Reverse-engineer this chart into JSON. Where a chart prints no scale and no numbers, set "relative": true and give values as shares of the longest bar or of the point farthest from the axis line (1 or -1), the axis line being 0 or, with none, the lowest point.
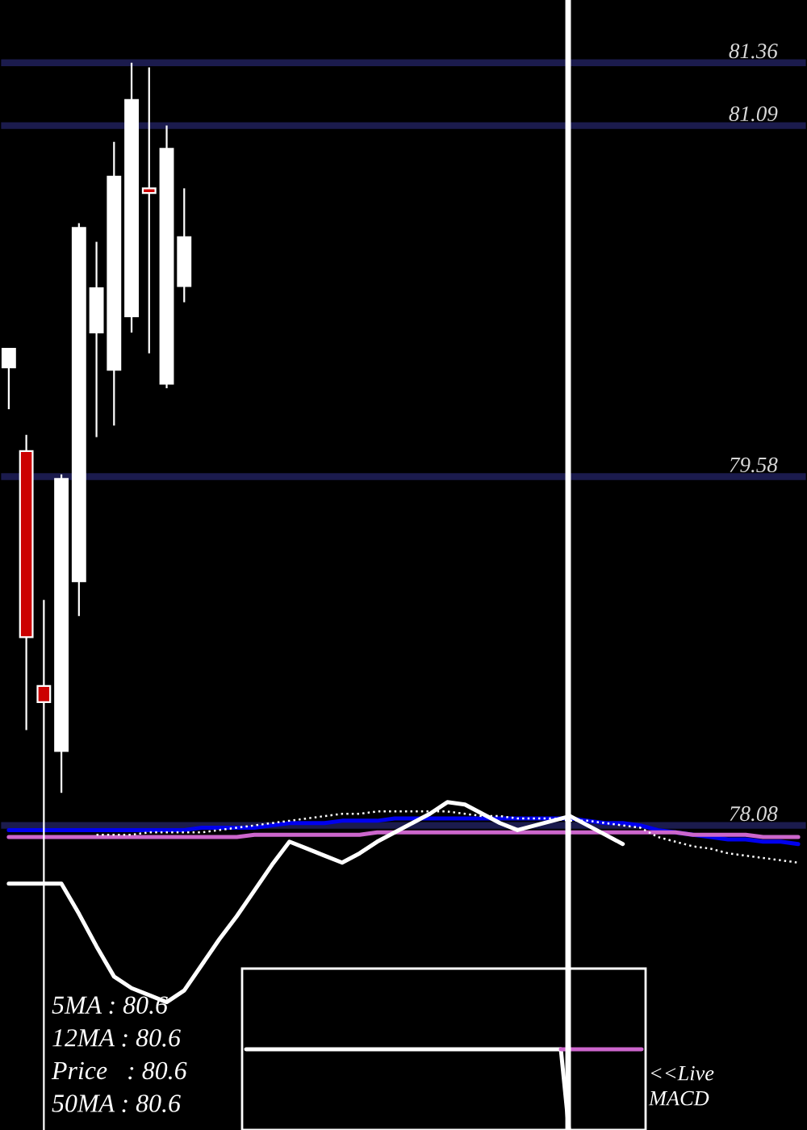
{
  "chart_data": [
    {
      "type": "candlestick",
      "categories": [
        null,
        null,
        null,
        null,
        null,
        null,
        null,
        null,
        null,
        null,
        null,
        null,
        null,
        null,
        null,
        null,
        null,
        null,
        null,
        null,
        null,
        null,
        null,
        null,
        null,
        null,
        null,
        null,
        null,
        null,
        null,
        null,
        null,
        null,
        null,
        null,
        null,
        null,
        null,
        null,
        null,
        null,
        null,
        null,
        null,
        null
      ],
      "ohlc": [
        [
          80.05,
          80.13,
          79.87,
          80.13
        ],
        [
          79.69,
          79.76,
          78.49,
          78.89
        ],
        [
          78.68,
          79.05,
          76.77,
          78.61
        ],
        [
          78.4,
          79.59,
          78.22,
          79.57
        ],
        [
          79.13,
          80.67,
          78.98,
          80.65
        ],
        [
          80.2,
          80.59,
          79.75,
          80.39
        ],
        [
          80.04,
          81.02,
          79.8,
          80.87
        ],
        [
          80.27,
          81.36,
          80.2,
          81.2
        ],
        [
          80.82,
          81.34,
          80.11,
          80.8
        ],
        [
          79.98,
          81.09,
          79.96,
          80.99
        ],
        [
          80.4,
          80.82,
          80.33,
          80.61
        ],
        null,
        null,
        null,
        null,
        null,
        null,
        null,
        null,
        null,
        null,
        null,
        null,
        null,
        null,
        null,
        null,
        null,
        null,
        null,
        null,
        null,
        null,
        null,
        null,
        null,
        null,
        null,
        null,
        null,
        null,
        null,
        null,
        null,
        null,
        null
      ],
      "colors": [
        "#ffffff",
        "#cc0000",
        "#cc0000",
        "#ffffff",
        "#ffffff",
        "#ffffff",
        "#ffffff",
        "#ffffff",
        "#cc0000",
        "#ffffff",
        "#ffffff",
        null,
        null,
        null,
        null,
        null,
        null,
        null,
        null,
        null,
        null,
        null,
        null,
        null,
        null,
        null,
        null,
        null,
        null,
        null,
        null,
        null,
        null,
        null,
        null,
        null,
        null,
        null,
        null,
        null,
        null,
        null,
        null,
        null,
        null,
        null
      ],
      "series": [
        {
          "type": "line",
          "color": "#0000ee",
          "values": [
            78.06,
            78.06,
            78.06,
            78.06,
            78.06,
            78.06,
            78.06,
            78.06,
            78.06,
            78.06,
            78.06,
            78.07,
            78.07,
            78.07,
            78.07,
            78.08,
            78.09,
            78.09,
            78.09,
            78.1,
            78.1,
            78.1,
            78.11,
            78.11,
            78.11,
            78.11,
            78.11,
            78.11,
            78.11,
            78.11,
            78.11,
            78.11,
            78.11,
            78.1,
            78.09,
            78.09,
            78.08,
            78.06,
            78.05,
            78.04,
            78.03,
            78.02,
            78.02,
            78.01,
            78.01,
            78.0
          ]
        },
        {
          "type": "line",
          "color": "#cc66cc",
          "values": [
            78.03,
            78.03,
            78.03,
            78.03,
            78.03,
            78.03,
            78.03,
            78.03,
            78.03,
            78.03,
            78.03,
            78.03,
            78.03,
            78.03,
            78.04,
            78.04,
            78.04,
            78.04,
            78.04,
            78.04,
            78.04,
            78.05,
            78.05,
            78.05,
            78.05,
            78.05,
            78.05,
            78.05,
            78.05,
            78.05,
            78.05,
            78.05,
            78.05,
            78.05,
            78.05,
            78.05,
            78.05,
            78.05,
            78.05,
            78.04,
            78.04,
            78.04,
            78.04,
            78.03,
            78.03,
            78.03
          ]
        },
        {
          "type": "line",
          "color": "#ffffff",
          "line_style": "dotted",
          "values": [
            null,
            null,
            null,
            null,
            null,
            78.04,
            78.04,
            78.04,
            78.05,
            78.05,
            78.05,
            78.05,
            78.06,
            78.07,
            78.08,
            78.09,
            78.1,
            78.11,
            78.12,
            78.13,
            78.13,
            78.14,
            78.14,
            78.14,
            78.14,
            78.14,
            78.13,
            78.12,
            78.12,
            78.11,
            78.11,
            78.11,
            78.1,
            78.1,
            78.09,
            78.08,
            78.07,
            78.03,
            78.01,
            77.99,
            77.98,
            77.96,
            77.95,
            77.94,
            77.93,
            77.92
          ]
        },
        {
          "type": "line",
          "color": "#ffffff",
          "values": [
            77.83,
            77.83,
            77.83,
            77.83,
            77.7,
            77.56,
            77.43,
            77.38,
            77.35,
            77.32,
            77.37,
            77.48,
            77.59,
            77.69,
            77.8,
            77.91,
            78.01,
            77.98,
            77.95,
            77.92,
            77.96,
            78.01,
            78.05,
            78.09,
            78.13,
            78.18,
            78.17,
            78.13,
            78.09,
            78.06,
            78.08,
            78.1,
            78.12,
            78.08,
            78.04,
            78.0,
            null,
            null,
            null,
            null,
            null,
            null,
            null,
            null,
            null,
            null
          ]
        }
      ],
      "ylim": [
        76.77,
        81.63
      ],
      "yticks": [
        78.08,
        79.58,
        81.09,
        81.36
      ],
      "grid": "y",
      "tick_labels": "y",
      "annotations": [
        "5MA : 80.6",
        "12MA : 80.6",
        "Price   : 80.6",
        "50MA : 80.6"
      ]
    },
    {
      "type": "line",
      "relative": true,
      "tick_labels": false,
      "categories": [
        null,
        null,
        null,
        null,
        null,
        null,
        null,
        null,
        null,
        null,
        null,
        null,
        null,
        null,
        null,
        null,
        null,
        null,
        null,
        null,
        null,
        null,
        null,
        null,
        null,
        null,
        null,
        null,
        null,
        null,
        null,
        null,
        null,
        null,
        null,
        null,
        null,
        null,
        null,
        null,
        null,
        null,
        null,
        null,
        null,
        null,
        null,
        null,
        null,
        null
      ],
      "series": [
        {
          "color": "#ffffff",
          "values": [
            1,
            1,
            1,
            1,
            1,
            1,
            1,
            1,
            1,
            1,
            1,
            1,
            1,
            1,
            1,
            1,
            1,
            1,
            1,
            1,
            1,
            1,
            1,
            1,
            1,
            1,
            1,
            1,
            1,
            1,
            1,
            1,
            1,
            1,
            1,
            1,
            1,
            1,
            1,
            1,
            0,
            null,
            null,
            null,
            null,
            null,
            null,
            null,
            null,
            null
          ]
        },
        {
          "color": "#cc66cc",
          "values": [
            null,
            null,
            null,
            null,
            null,
            null,
            null,
            null,
            null,
            null,
            null,
            null,
            null,
            null,
            null,
            null,
            null,
            null,
            null,
            null,
            null,
            null,
            null,
            null,
            null,
            null,
            null,
            null,
            null,
            null,
            null,
            null,
            null,
            null,
            null,
            null,
            null,
            null,
            null,
            1,
            1,
            1,
            1,
            1,
            1,
            1,
            1,
            1,
            1,
            1
          ]
        }
      ],
      "annotations": [
        "<<Live",
        "MACD"
      ]
    }
  ]
}
